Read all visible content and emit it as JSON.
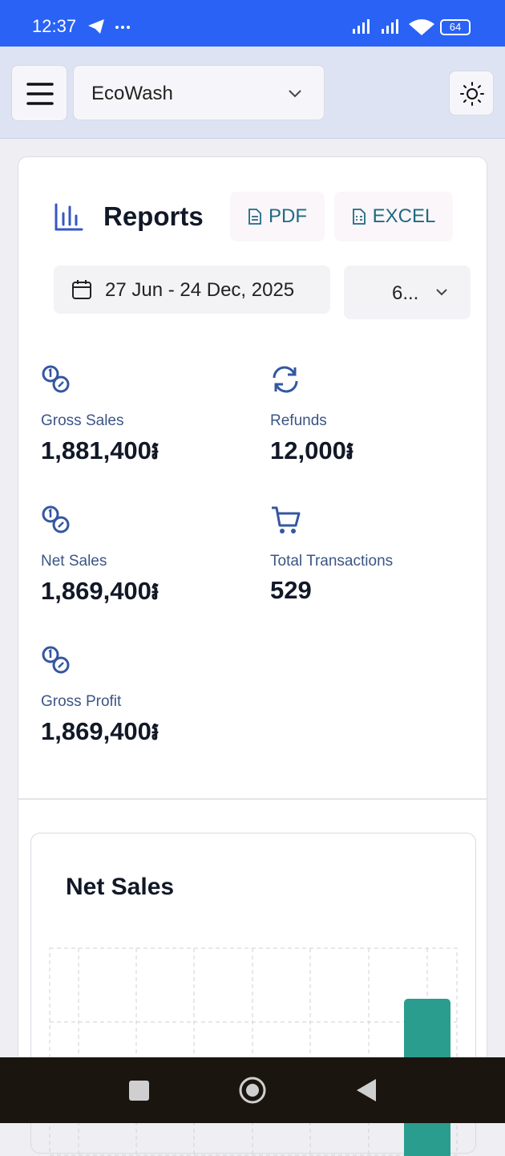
{
  "status_bar": {
    "time": "12:37",
    "battery": "64"
  },
  "header": {
    "store": "EcoWash"
  },
  "reports": {
    "title": "Reports",
    "pdf": "PDF",
    "excel": "EXCEL",
    "date_range": "27 Jun - 24 Dec, 2025",
    "period": "6...",
    "metrics": [
      {
        "label": "Gross Sales",
        "value": "1,881,400៛"
      },
      {
        "label": "Refunds",
        "value": "12,000៛"
      },
      {
        "label": "Net Sales",
        "value": "1,869,400៛"
      },
      {
        "label": "Total Transactions",
        "value": "529"
      },
      {
        "label": "Gross Profit",
        "value": "1,869,400៛"
      }
    ]
  },
  "chart_card": {
    "title": "Net Sales"
  }
}
